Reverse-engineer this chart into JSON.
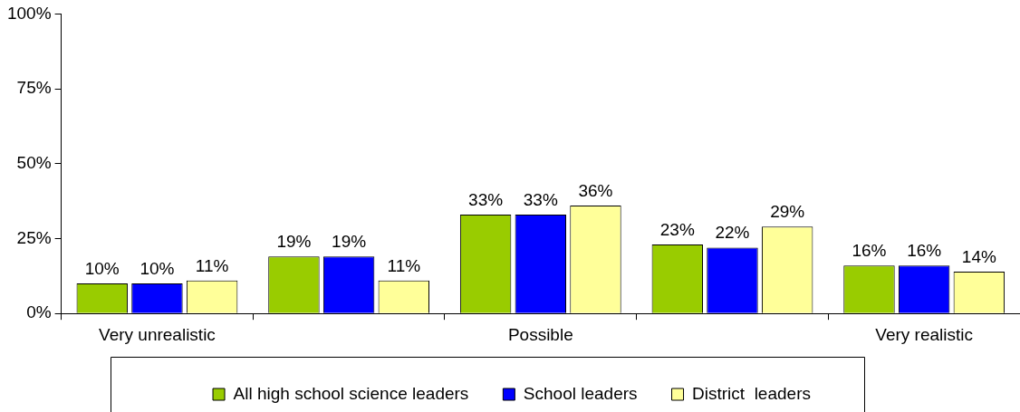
{
  "chart_data": {
    "type": "bar",
    "categories": [
      "Very unrealistic",
      null,
      "Possible",
      null,
      "Very realistic"
    ],
    "series": [
      {
        "name": "All high school science leaders",
        "color": "#99cc00",
        "values": [
          10,
          19,
          33,
          23,
          16
        ],
        "value_labels": [
          "10%",
          "19%",
          "33%",
          "23%",
          "16%"
        ]
      },
      {
        "name": "School leaders",
        "color": "#0000ff",
        "values": [
          10,
          19,
          33,
          22,
          16
        ],
        "value_labels": [
          "10%",
          "19%",
          "33%",
          "22%",
          "16%"
        ]
      },
      {
        "name": "District  leaders",
        "color": "#ffff99",
        "values": [
          11,
          11,
          36,
          29,
          14
        ],
        "value_labels": [
          "11%",
          "11%",
          "36%",
          "29%",
          "14%"
        ]
      }
    ],
    "ylim": [
      0,
      100
    ],
    "yticks": [
      {
        "value": 0,
        "label": "0%"
      },
      {
        "value": 25,
        "label": "25%"
      },
      {
        "value": 50,
        "label": "50%"
      },
      {
        "value": 75,
        "label": "75%"
      },
      {
        "value": 100,
        "label": "100%"
      }
    ],
    "legend": "bottom"
  }
}
